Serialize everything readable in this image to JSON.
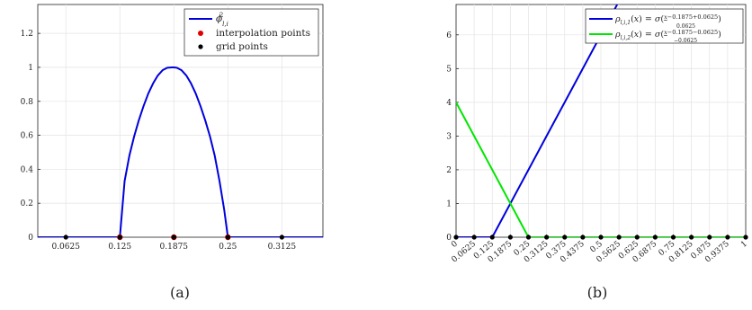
{
  "captions": {
    "a": "(a)",
    "b": "(b)"
  },
  "colors": {
    "blue": "#0000dd",
    "green": "#00e600",
    "red": "#e00000",
    "black": "#000000",
    "grid": "#e6e6e6",
    "axis": "#222222"
  },
  "chart_data": [
    {
      "panel": "a",
      "type": "line",
      "xlim": [
        0.03,
        0.36
      ],
      "ylim": [
        0,
        1.37
      ],
      "x_ticks": [
        0.0625,
        0.125,
        0.1875,
        0.25,
        0.3125
      ],
      "x_tick_labels": [
        "0.0625",
        "0.125",
        "0.1875",
        "0.25",
        "0.3125"
      ],
      "y_ticks": [
        0,
        0.2,
        0.4,
        0.6,
        0.8,
        1,
        1.2
      ],
      "y_tick_labels": [
        "0",
        "0.2",
        "0.4",
        "0.6",
        "0.8",
        "1",
        "1.2"
      ],
      "grid": true,
      "legend_position": "top-right",
      "series": [
        {
          "name": "ϕ_{l,i}^2",
          "kind": "line",
          "color": "#0000dd",
          "x": [
            0.03,
            0.125,
            0.1305,
            0.136,
            0.1415,
            0.1469,
            0.1524,
            0.1579,
            0.1634,
            0.1689,
            0.1744,
            0.1799,
            0.1854,
            0.1875,
            0.1909,
            0.1964,
            0.2019,
            0.2074,
            0.2128,
            0.2183,
            0.2238,
            0.2293,
            0.2348,
            0.2403,
            0.2458,
            0.25,
            0.36
          ],
          "y": [
            0,
            0,
            0.331,
            0.48,
            0.593,
            0.688,
            0.772,
            0.846,
            0.905,
            0.952,
            0.983,
            0.998,
            1.0,
            1.0,
            0.998,
            0.983,
            0.952,
            0.905,
            0.846,
            0.772,
            0.688,
            0.593,
            0.48,
            0.331,
            0.16,
            0,
            0
          ]
        },
        {
          "name": "interpolation points",
          "kind": "points",
          "color": "#e00000",
          "x": [
            0.125,
            0.1875,
            0.25
          ],
          "y": [
            0,
            0,
            0
          ]
        },
        {
          "name": "grid points",
          "kind": "points",
          "color": "#000000",
          "x": [
            0.0625,
            0.125,
            0.1875,
            0.25,
            0.3125
          ],
          "y": [
            0,
            0,
            0,
            0,
            0
          ]
        }
      ]
    },
    {
      "panel": "b",
      "type": "line",
      "xlim": [
        0,
        1
      ],
      "ylim": [
        0,
        6.9
      ],
      "x_ticks": [
        0,
        0.0625,
        0.125,
        0.1875,
        0.25,
        0.3125,
        0.375,
        0.4375,
        0.5,
        0.5625,
        0.625,
        0.6875,
        0.75,
        0.8125,
        0.875,
        0.9375,
        1
      ],
      "x_tick_labels": [
        "0",
        "0.0625",
        "0.125",
        "0.1875",
        "0.25",
        "0.3125",
        "0.375",
        "0.4375",
        "0.5",
        "0.5625",
        "0.625",
        "0.6875",
        "0.75",
        "0.8125",
        "0.875",
        "0.9375",
        "1"
      ],
      "y_ticks": [
        0,
        1,
        2,
        3,
        4,
        5,
        6
      ],
      "y_tick_labels": [
        "0",
        "1",
        "2",
        "3",
        "4",
        "5",
        "6"
      ],
      "grid": true,
      "legend_position": "top-right",
      "series": [
        {
          "name": "ρ_{l,i,1}(x) = σ((x−0.1875+0.0625)/0.0625)",
          "kind": "line",
          "color": "#0000dd",
          "x": [
            0,
            0.125,
            0.5563
          ],
          "y": [
            0,
            0,
            6.9
          ]
        },
        {
          "name": "ρ_{l,i,2}(x) = σ((x−0.1875−0.0625)/(−0.0625))",
          "kind": "line",
          "color": "#00e600",
          "x": [
            0,
            0.25,
            1
          ],
          "y": [
            4,
            0,
            0
          ]
        },
        {
          "name": "grid points",
          "kind": "points",
          "color": "#000000",
          "x": [
            0,
            0.0625,
            0.125,
            0.1875,
            0.25,
            0.3125,
            0.375,
            0.4375,
            0.5,
            0.5625,
            0.625,
            0.6875,
            0.75,
            0.8125,
            0.875,
            0.9375,
            1
          ],
          "y": [
            0,
            0,
            0,
            0,
            0,
            0,
            0,
            0,
            0,
            0,
            0,
            0,
            0,
            0,
            0,
            0,
            0
          ]
        }
      ]
    }
  ]
}
